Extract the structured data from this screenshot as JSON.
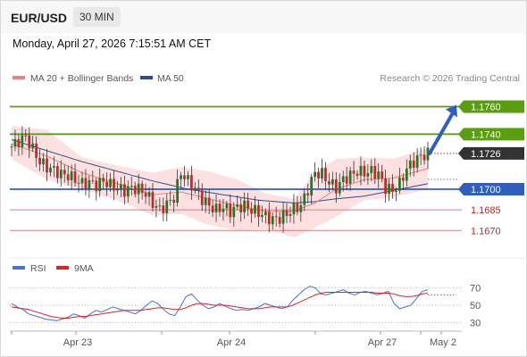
{
  "header": {
    "pair": "EUR/USD",
    "timeframe": "30 MIN"
  },
  "timestamp": "Monday, April 27, 2026 7:15:51 AM CET",
  "source": "Research © 2026 Trading Central",
  "colors": {
    "resistance": "#5a9e0f",
    "pivot": "#2e5fbf",
    "support": "#e07b7b",
    "current": "#333333",
    "ma20": "#f08080",
    "ma50": "#2e4f8f",
    "band_fill": "#fde0e0",
    "rsi": "#4a6fd6",
    "rsi_ma": "#dd2222"
  },
  "chart_data": [
    {
      "type": "candlestick",
      "instrument": "EUR/USD",
      "timeframe": "30 MIN",
      "legend": [
        {
          "name": "MA 20 + Bollinger Bands",
          "color": "#f08080"
        },
        {
          "name": "MA 50",
          "color": "#2e4f8f"
        }
      ],
      "x_ticks": [
        "Apr 23",
        "Apr 24",
        "Apr 27",
        "May 2"
      ],
      "ylim": [
        1.1652,
        1.1772
      ],
      "levels": [
        {
          "label": "1.1760",
          "value": 1.176,
          "kind": "resistance"
        },
        {
          "label": "1.1740",
          "value": 1.174,
          "kind": "resistance"
        },
        {
          "label": "1.1726",
          "value": 1.1726,
          "kind": "current"
        },
        {
          "label": "1.1700",
          "value": 1.17,
          "kind": "pivot"
        },
        {
          "label": "1.1685",
          "value": 1.1685,
          "kind": "support"
        },
        {
          "label": "1.1670",
          "value": 1.167,
          "kind": "support"
        }
      ],
      "close_path": [
        [
          0,
          1.1731
        ],
        [
          2,
          1.1735
        ],
        [
          4,
          1.1738
        ],
        [
          6,
          1.1729
        ],
        [
          8,
          1.172
        ],
        [
          10,
          1.1716
        ],
        [
          12,
          1.1714
        ],
        [
          14,
          1.1711
        ],
        [
          16,
          1.171
        ],
        [
          18,
          1.1707
        ],
        [
          20,
          1.1704
        ],
        [
          22,
          1.1705
        ],
        [
          24,
          1.1703
        ],
        [
          26,
          1.1706
        ],
        [
          28,
          1.1703
        ],
        [
          30,
          1.1701
        ],
        [
          32,
          1.1699
        ],
        [
          34,
          1.1701
        ],
        [
          36,
          1.17
        ],
        [
          38,
          1.1697
        ],
        [
          40,
          1.169
        ],
        [
          42,
          1.1685
        ],
        [
          44,
          1.1689
        ],
        [
          46,
          1.1694
        ],
        [
          48,
          1.1712
        ],
        [
          50,
          1.1706
        ],
        [
          52,
          1.17
        ],
        [
          54,
          1.1693
        ],
        [
          56,
          1.1688
        ],
        [
          58,
          1.1685
        ],
        [
          60,
          1.1687
        ],
        [
          62,
          1.1684
        ],
        [
          64,
          1.1687
        ],
        [
          66,
          1.1688
        ],
        [
          68,
          1.1685
        ],
        [
          70,
          1.1683
        ],
        [
          72,
          1.168
        ],
        [
          74,
          1.1678
        ],
        [
          76,
          1.1679
        ],
        [
          78,
          1.1682
        ],
        [
          80,
          1.1686
        ],
        [
          82,
          1.1688
        ],
        [
          84,
          1.17
        ],
        [
          86,
          1.1712
        ],
        [
          88,
          1.1711
        ],
        [
          90,
          1.1705
        ],
        [
          92,
          1.1701
        ],
        [
          94,
          1.1707
        ],
        [
          96,
          1.171
        ],
        [
          98,
          1.1713
        ],
        [
          100,
          1.1712
        ],
        [
          102,
          1.1713
        ],
        [
          104,
          1.1711
        ],
        [
          106,
          1.1701
        ],
        [
          108,
          1.1699
        ],
        [
          110,
          1.1704
        ],
        [
          112,
          1.1715
        ],
        [
          114,
          1.172
        ],
        [
          116,
          1.1724
        ],
        [
          118,
          1.1726
        ]
      ],
      "ma20_path": [
        [
          0,
          1.1733
        ],
        [
          10,
          1.1724
        ],
        [
          20,
          1.1712
        ],
        [
          30,
          1.1704
        ],
        [
          40,
          1.1696
        ],
        [
          48,
          1.1698
        ],
        [
          56,
          1.1693
        ],
        [
          64,
          1.1688
        ],
        [
          72,
          1.1684
        ],
        [
          80,
          1.1684
        ],
        [
          86,
          1.169
        ],
        [
          92,
          1.17
        ],
        [
          100,
          1.1707
        ],
        [
          108,
          1.1708
        ],
        [
          118,
          1.1715
        ]
      ],
      "band_upper": [
        [
          0,
          1.1746
        ],
        [
          10,
          1.1743
        ],
        [
          20,
          1.1723
        ],
        [
          30,
          1.1717
        ],
        [
          40,
          1.1712
        ],
        [
          48,
          1.1716
        ],
        [
          56,
          1.1713
        ],
        [
          64,
          1.1707
        ],
        [
          72,
          1.1697
        ],
        [
          80,
          1.1693
        ],
        [
          86,
          1.1712
        ],
        [
          92,
          1.1722
        ],
        [
          100,
          1.1723
        ],
        [
          108,
          1.1722
        ],
        [
          118,
          1.173
        ]
      ],
      "band_lower": [
        [
          0,
          1.1722
        ],
        [
          10,
          1.1707
        ],
        [
          20,
          1.17
        ],
        [
          30,
          1.1692
        ],
        [
          40,
          1.1681
        ],
        [
          48,
          1.1682
        ],
        [
          56,
          1.1674
        ],
        [
          64,
          1.167
        ],
        [
          72,
          1.1671
        ],
        [
          80,
          1.1665
        ],
        [
          86,
          1.1672
        ],
        [
          92,
          1.168
        ],
        [
          100,
          1.1692
        ],
        [
          108,
          1.1694
        ],
        [
          118,
          1.17
        ]
      ],
      "ma50_path": [
        [
          0,
          1.1736
        ],
        [
          10,
          1.1728
        ],
        [
          20,
          1.172
        ],
        [
          30,
          1.1713
        ],
        [
          40,
          1.1706
        ],
        [
          50,
          1.17
        ],
        [
          60,
          1.1696
        ],
        [
          70,
          1.1692
        ],
        [
          80,
          1.169
        ],
        [
          86,
          1.1691
        ],
        [
          92,
          1.1693
        ],
        [
          100,
          1.1695
        ],
        [
          108,
          1.1699
        ],
        [
          118,
          1.1704
        ]
      ],
      "projection": {
        "from": 1.1726,
        "to": 1.176
      }
    },
    {
      "type": "line",
      "legend": [
        {
          "name": "RSI",
          "color": "#4a6fd6"
        },
        {
          "name": "9MA",
          "color": "#dd2222"
        }
      ],
      "x_ticks": [
        "Apr 23",
        "Apr 24",
        "Apr 27",
        "May 2"
      ],
      "y_ticks": [
        "70",
        "50",
        "30"
      ],
      "ylim": [
        20,
        80
      ],
      "series": [
        {
          "name": "RSI",
          "values": [
            52,
            48,
            45,
            40,
            38,
            36,
            34,
            33,
            32,
            34,
            36,
            40,
            38,
            35,
            40,
            44,
            42,
            45,
            48,
            46,
            44,
            42,
            40,
            44,
            50,
            55,
            52,
            45,
            40,
            38,
            48,
            60,
            63,
            56,
            50,
            46,
            48,
            52,
            49,
            46,
            44,
            45,
            44,
            46,
            48,
            52,
            50,
            48,
            46,
            48,
            56,
            62,
            68,
            72,
            70,
            63,
            62,
            64,
            66,
            68,
            64,
            62,
            65,
            66,
            64,
            62,
            64,
            66,
            52,
            46,
            48,
            50,
            58,
            66,
            68
          ]
        },
        {
          "name": "9MA",
          "values": [
            48,
            47,
            46,
            45,
            43,
            41,
            39,
            37,
            36,
            35,
            35,
            36,
            37,
            37,
            38,
            39,
            40,
            41,
            42,
            43,
            44,
            44,
            44,
            44,
            45,
            46,
            47,
            47,
            46,
            45,
            45,
            47,
            50,
            52,
            52,
            51,
            50,
            50,
            50,
            49,
            48,
            47,
            46,
            46,
            46,
            47,
            48,
            48,
            48,
            48,
            50,
            53,
            56,
            59,
            62,
            64,
            65,
            65,
            65,
            65,
            65,
            65,
            65,
            65,
            65,
            64,
            64,
            64,
            63,
            61,
            60,
            60,
            61,
            63,
            64
          ]
        }
      ]
    }
  ]
}
